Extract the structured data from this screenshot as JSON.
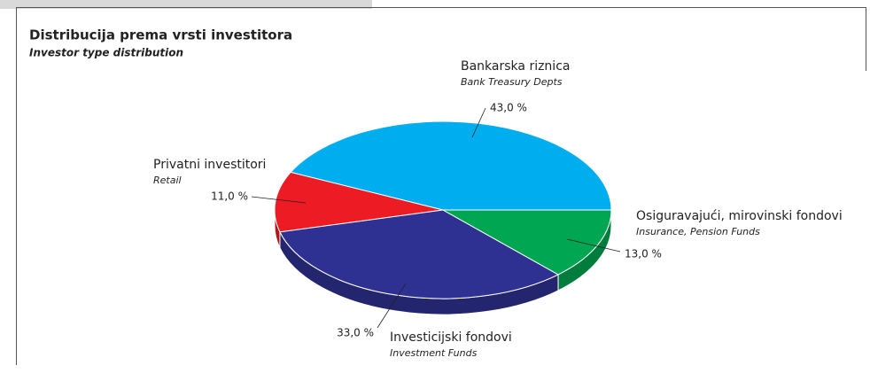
{
  "chart_data": {
    "type": "pie",
    "title": "Distribucija prema vrsti investitora",
    "subtitle": "Investor type distribution",
    "categories": [
      "Bankarska riznica",
      "Privatni investitori",
      "Investicijski fondovi",
      "Osiguravajući, mirovinski fondovi"
    ],
    "category_subtitles": [
      "Bank Treasury Depts",
      "Retail",
      "Investment Funds",
      "Insurance, Pension Funds"
    ],
    "values": [
      43,
      11,
      33,
      13
    ],
    "value_labels": [
      "43,0 %",
      "11,0 %",
      "33,0 %",
      "13,0 %"
    ],
    "colors": [
      "#00aeef",
      "#ed1c24",
      "#2e3192",
      "#00a651"
    ]
  }
}
